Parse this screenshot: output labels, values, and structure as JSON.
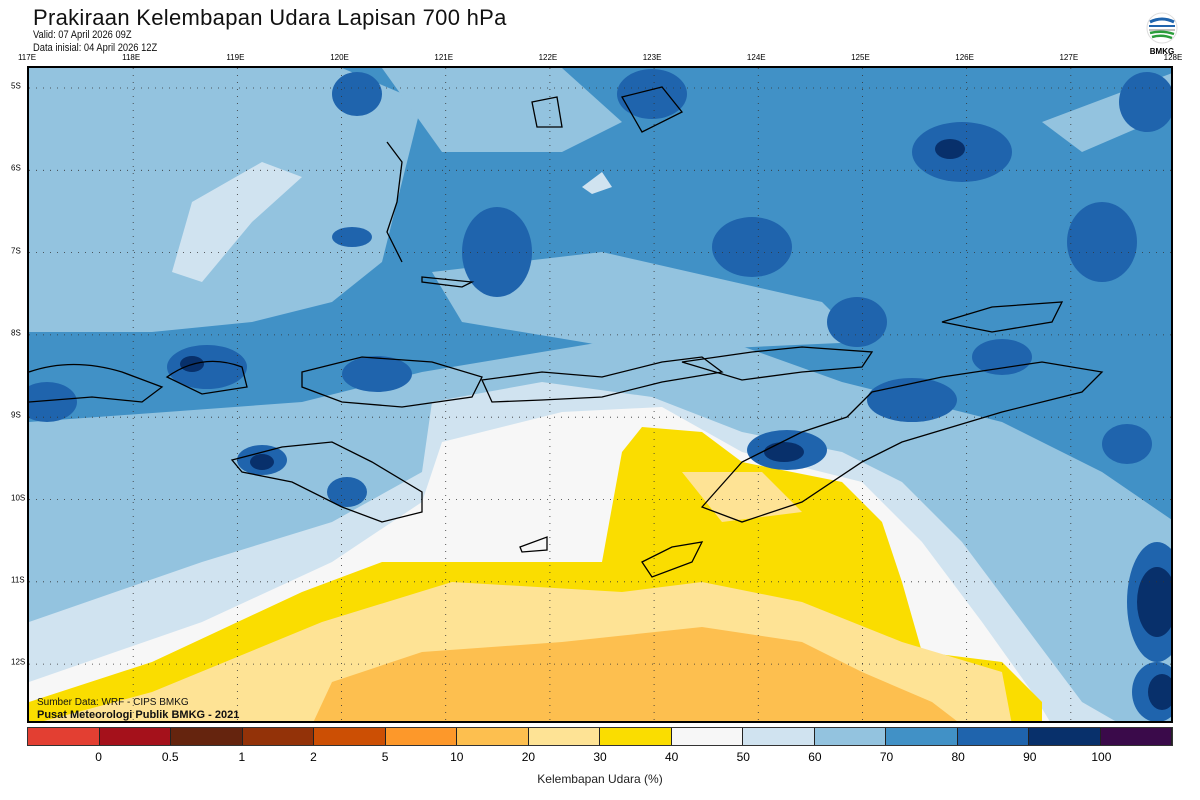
{
  "header": {
    "title": "Prakiraan Kelembapan Udara Lapisan 700 hPa",
    "valid": "Valid: 07 April 2026 09Z",
    "data_inisial": "Data inisial: 04 April 2026 12Z"
  },
  "logo": {
    "text": "BMKG"
  },
  "map": {
    "lon_labels": [
      "117E",
      "118E",
      "119E",
      "120E",
      "121E",
      "122E",
      "123E",
      "124E",
      "125E",
      "126E",
      "127E",
      "128E"
    ],
    "lat_labels": [
      "5S",
      "6S",
      "7S",
      "8S",
      "9S",
      "10S",
      "11S",
      "12S"
    ],
    "source": "Sumber Data: WRF - CIPS BMKG",
    "credit": "Pusat Meteorologi Publik BMKG - 2021"
  },
  "colorbar": {
    "colors": [
      "#e33f32",
      "#a5111b",
      "#65240e",
      "#933208",
      "#cc4f04",
      "#fd982a",
      "#fdbf4f",
      "#fee395",
      "#fadd00",
      "#f7f7f7",
      "#d0e3f0",
      "#93c3df",
      "#4191c6",
      "#1f64ad",
      "#08306b",
      "#3a0a4a"
    ],
    "ticks": [
      "0",
      "0.5",
      "1",
      "2",
      "5",
      "10",
      "20",
      "30",
      "40",
      "50",
      "60",
      "70",
      "80",
      "90",
      "100"
    ],
    "label": "Kelembapan Udara (%)"
  }
}
